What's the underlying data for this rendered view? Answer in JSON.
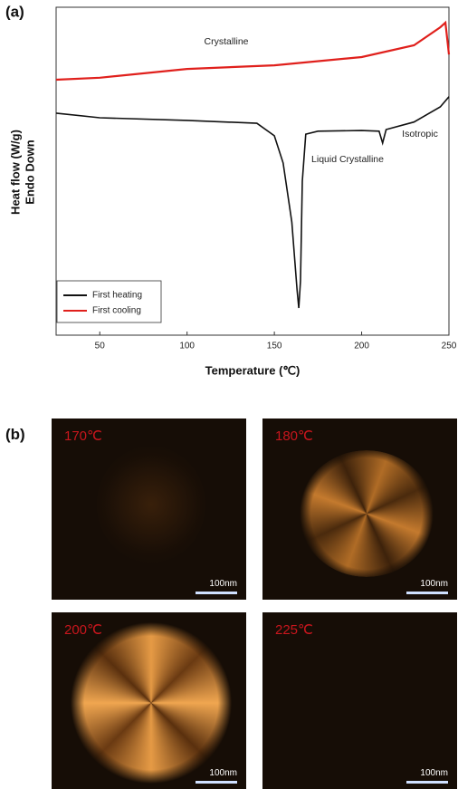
{
  "chart_data": {
    "type": "line",
    "panel_label": "(a)",
    "xlabel": "Temperature (℃)",
    "ylabel": [
      "Heat flow (W/g)",
      "Endo Down"
    ],
    "xlim": [
      25,
      250
    ],
    "xticks": [
      50,
      100,
      150,
      200,
      250
    ],
    "ylim": [
      0,
      100
    ],
    "legend": "lower left",
    "annotations": [
      "Crystalline",
      "Liquid Crystalline",
      "Isotropic"
    ],
    "series": [
      {
        "name": "First heating",
        "color": "#111111",
        "x": [
          25,
          50,
          100,
          140,
          150,
          155,
          160,
          163,
          164,
          165,
          166,
          168,
          175,
          200,
          210,
          212,
          214,
          230,
          245,
          250
        ],
        "values": [
          67.7,
          66.3,
          65.5,
          64.6,
          60.8,
          52.5,
          34.5,
          13.8,
          8.3,
          16.6,
          47,
          61.3,
          62.2,
          62.4,
          62.2,
          58.6,
          62.7,
          65,
          69.6,
          72.7
        ]
      },
      {
        "name": "First cooling",
        "color": "#e0201c",
        "x": [
          25,
          50,
          100,
          150,
          200,
          230,
          245,
          248,
          250
        ],
        "values": [
          77.9,
          78.5,
          81.2,
          82.3,
          84.8,
          88.4,
          93.9,
          95.3,
          85.6
        ]
      }
    ]
  },
  "panel_b": {
    "panel_label": "(b)",
    "micrographs": [
      {
        "temperature": "170℃",
        "scale_bar": "100nm"
      },
      {
        "temperature": "180℃",
        "scale_bar": "100nm"
      },
      {
        "temperature": "200℃",
        "scale_bar": "100nm"
      },
      {
        "temperature": "225℃",
        "scale_bar": "100nm"
      }
    ]
  }
}
